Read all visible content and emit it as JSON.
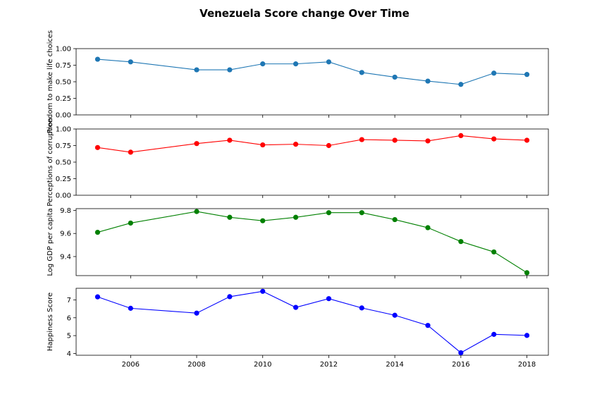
{
  "chart_data": {
    "type": "line",
    "title": "Venezuela Score change Over Time",
    "sharex": true,
    "x": [
      2005,
      2006,
      2008,
      2009,
      2010,
      2011,
      2012,
      2013,
      2014,
      2015,
      2016,
      2017,
      2018
    ],
    "xticks": [
      2006,
      2008,
      2010,
      2012,
      2014,
      2016,
      2018
    ],
    "xlim": [
      2004.35,
      2018.65
    ],
    "grid": false,
    "subplots": [
      {
        "ylabel": "Freedom to make life choices",
        "color": "#1f77b4",
        "ylim": [
          0.0,
          1.0
        ],
        "yticks": [
          0.0,
          0.25,
          0.5,
          0.75,
          1.0
        ],
        "ytick_labels": [
          "0.00",
          "0.25",
          "0.50",
          "0.75",
          "1.00"
        ],
        "values": [
          0.84,
          0.8,
          0.68,
          0.68,
          0.77,
          0.77,
          0.8,
          0.64,
          0.57,
          0.51,
          0.46,
          0.63,
          0.61
        ]
      },
      {
        "ylabel": "Perceptions of corruption",
        "color": "#ff0000",
        "ylim": [
          0.0,
          1.0
        ],
        "yticks": [
          0.0,
          0.25,
          0.5,
          0.75,
          1.0
        ],
        "ytick_labels": [
          "0.00",
          "0.25",
          "0.50",
          "0.75",
          "1.00"
        ],
        "values": [
          0.72,
          0.65,
          0.78,
          0.83,
          0.76,
          0.77,
          0.75,
          0.84,
          0.83,
          0.82,
          0.9,
          0.85,
          0.83
        ]
      },
      {
        "ylabel": "Log GDP per capita",
        "color": "#008000",
        "ylim": [
          9.235,
          9.815
        ],
        "yticks": [
          9.4,
          9.6,
          9.8
        ],
        "ytick_labels": [
          "9.4",
          "9.6",
          "9.8"
        ],
        "values": [
          9.61,
          9.69,
          9.79,
          9.74,
          9.71,
          9.74,
          9.78,
          9.78,
          9.72,
          9.65,
          9.53,
          9.44,
          9.26
        ]
      },
      {
        "ylabel": "Happiness Score",
        "color": "#0000ff",
        "ylim": [
          3.9,
          7.65
        ],
        "yticks": [
          4,
          5,
          6,
          7
        ],
        "ytick_labels": [
          "4",
          "5",
          "6",
          "7"
        ],
        "values": [
          7.17,
          6.53,
          6.26,
          7.18,
          7.48,
          6.58,
          7.07,
          6.55,
          6.14,
          5.57,
          4.04,
          5.07,
          5.01
        ]
      }
    ]
  }
}
